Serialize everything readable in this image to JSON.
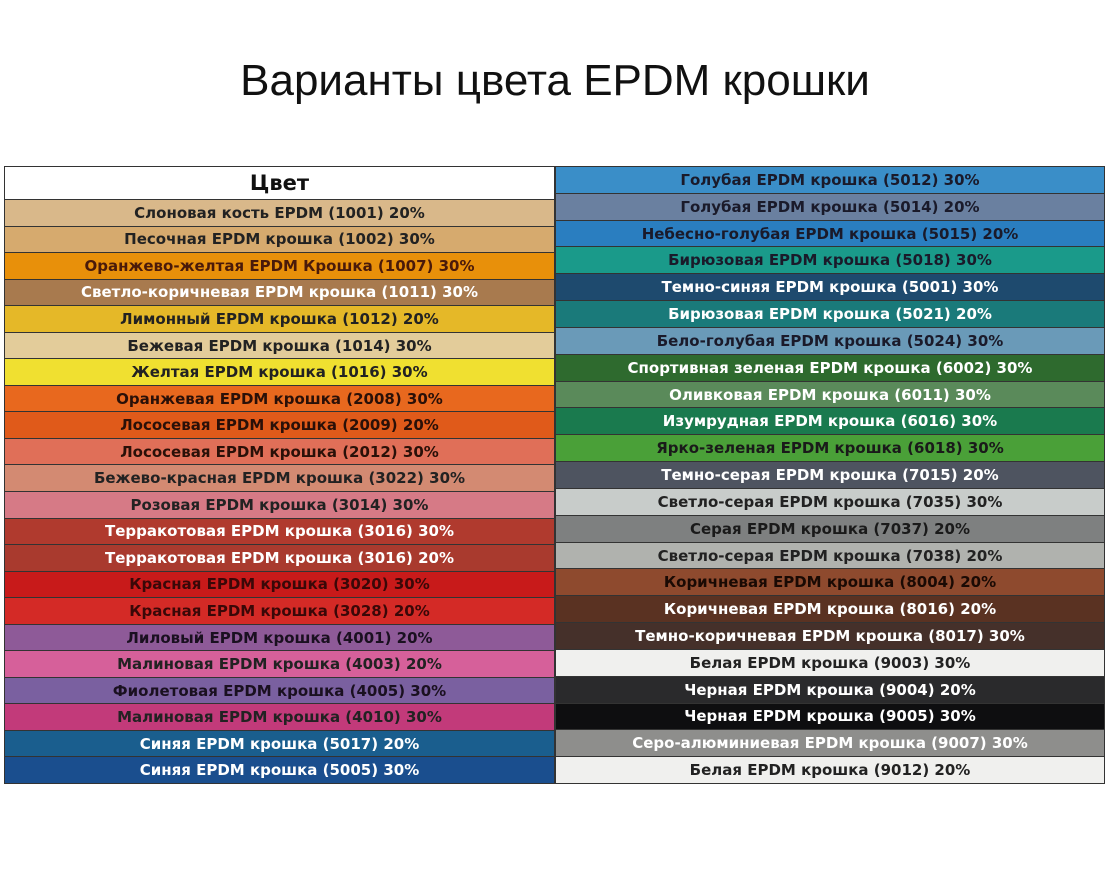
{
  "title": "Варианты цвета EPDM крошки",
  "table": {
    "header": "Цвет",
    "left": [
      {
        "label": "Слоновая кость EPDM (1001) 20%",
        "color": "#d9b88a",
        "text_color": "#222"
      },
      {
        "label": "Песочная EPDM крошка (1002) 30%",
        "color": "#d6aa6e",
        "text_color": "#222"
      },
      {
        "label": "Оранжево-желтая EPDM Крошка (1007) 30%",
        "color": "#e8900a",
        "text_color": "#4a1a0a"
      },
      {
        "label": "Светло-коричневая EPDM крошка (1011) 30%",
        "color": "#a87a4e",
        "text_color": "#ffffff"
      },
      {
        "label": "Лимонный EPDM крошка (1012) 20%",
        "color": "#e5b828",
        "text_color": "#222"
      },
      {
        "label": "Бежевая EPDM крошка (1014) 30%",
        "color": "#e3cc9a",
        "text_color": "#222"
      },
      {
        "label": "Желтая EPDM крошка (1016) 30%",
        "color": "#f0e030",
        "text_color": "#222"
      },
      {
        "label": "Оранжевая EPDM крошка (2008) 30%",
        "color": "#e8681e",
        "text_color": "#2a1008"
      },
      {
        "label": "Лососевая EPDM крошка (2009) 20%",
        "color": "#e05a1a",
        "text_color": "#2a1008"
      },
      {
        "label": "Лососевая EPDM крошка (2012) 30%",
        "color": "#e06f58",
        "text_color": "#2a1008"
      },
      {
        "label": "Бежево-красная EPDM крошка (3022) 30%",
        "color": "#d38a72",
        "text_color": "#222"
      },
      {
        "label": "Розовая EPDM крошка (3014) 30%",
        "color": "#d67a86",
        "text_color": "#222"
      },
      {
        "label": "Терракотовая EPDM крошка (3016) 30%",
        "color": "#b03a2e",
        "text_color": "#ffffff"
      },
      {
        "label": "Терракотовая EPDM крошка (3016) 20%",
        "color": "#a93a2e",
        "text_color": "#ffffff"
      },
      {
        "label": "Красная EPDM крошка (3020) 30%",
        "color": "#c81a1a",
        "text_color": "#3a0808"
      },
      {
        "label": "Красная EPDM крошка (3028) 20%",
        "color": "#d42a26",
        "text_color": "#3a0808"
      },
      {
        "label": "Лиловый EPDM крошка (4001) 20%",
        "color": "#8e5a98",
        "text_color": "#1a1020"
      },
      {
        "label": "Малиновая EPDM крошка (4003) 20%",
        "color": "#d6609a",
        "text_color": "#222"
      },
      {
        "label": "Фиолетовая EPDM крошка (4005) 30%",
        "color": "#7a60a0",
        "text_color": "#1a1020"
      },
      {
        "label": "Малиновая EPDM крошка (4010) 30%",
        "color": "#c23a7a",
        "text_color": "#222"
      },
      {
        "label": "Синяя EPDM крошка (5017) 20%",
        "color": "#1a5e8e",
        "text_color": "#ffffff"
      },
      {
        "label": "Синяя EPDM крошка (5005) 30%",
        "color": "#1a4e8e",
        "text_color": "#ffffff"
      }
    ],
    "right": [
      {
        "label": "Голубая EPDM крошка (5012) 30%",
        "color": "#3a8ec8",
        "text_color": "#1a1a2a"
      },
      {
        "label": "Голубая EPDM крошка (5014) 20%",
        "color": "#6a80a0",
        "text_color": "#1a1a2a"
      },
      {
        "label": "Небесно-голубая EPDM крошка (5015) 20%",
        "color": "#2a7ec0",
        "text_color": "#1a1a2a"
      },
      {
        "label": "Бирюзовая EPDM крошка (5018) 30%",
        "color": "#1a9a8a",
        "text_color": "#1a1a2a"
      },
      {
        "label": "Темно-синяя EPDM крошка (5001) 30%",
        "color": "#1e4a6e",
        "text_color": "#ffffff"
      },
      {
        "label": "Бирюзовая EPDM крошка (5021) 20%",
        "color": "#1a7a7a",
        "text_color": "#ffffff"
      },
      {
        "label": "Бело-голубая EPDM крошка (5024) 30%",
        "color": "#6a9ab8",
        "text_color": "#1a1a2a"
      },
      {
        "label": "Спортивная зеленая EPDM крошка (6002) 30%",
        "color": "#2e6a2e",
        "text_color": "#ffffff"
      },
      {
        "label": "Оливковая EPDM крошка (6011) 30%",
        "color": "#5a8a5a",
        "text_color": "#ffffff"
      },
      {
        "label": "Изумрудная EPDM крошка (6016) 30%",
        "color": "#1a7a4e",
        "text_color": "#ffffff"
      },
      {
        "label": "Ярко-зеленая EPDM крошка (6018) 30%",
        "color": "#4aa038",
        "text_color": "#1a1a1a"
      },
      {
        "label": "Темно-серая EPDM крошка (7015) 20%",
        "color": "#4e5460",
        "text_color": "#ffffff"
      },
      {
        "label": "Светло-серая EPDM крошка (7035) 30%",
        "color": "#c8ccca",
        "text_color": "#222"
      },
      {
        "label": "Серая EPDM крошка (7037) 20%",
        "color": "#7e8080",
        "text_color": "#1a1a1a"
      },
      {
        "label": "Светло-серая EPDM крошка (7038) 20%",
        "color": "#b0b2ae",
        "text_color": "#222"
      },
      {
        "label": "Коричневая EPDM крошка (8004) 20%",
        "color": "#8e4a2e",
        "text_color": "#1a0a04"
      },
      {
        "label": "Коричневая EPDM крошка (8016) 20%",
        "color": "#5a3222",
        "text_color": "#ffffff"
      },
      {
        "label": "Темно-коричневая EPDM крошка (8017) 30%",
        "color": "#45302a",
        "text_color": "#ffffff"
      },
      {
        "label": "Белая EPDM крошка (9003) 30%",
        "color": "#f0f0ee",
        "text_color": "#222"
      },
      {
        "label": "Черная EPDM крошка (9004) 20%",
        "color": "#2a2a2c",
        "text_color": "#ffffff"
      },
      {
        "label": "Черная EPDM крошка (9005) 30%",
        "color": "#0e0e10",
        "text_color": "#ffffff"
      },
      {
        "label": "Серо-алюминиевая EPDM крошка (9007) 30%",
        "color": "#8e8e8c",
        "text_color": "#ffffff"
      },
      {
        "label": "Белая EPDM крошка (9012) 20%",
        "color": "#f0f0ee",
        "text_color": "#222"
      }
    ]
  }
}
